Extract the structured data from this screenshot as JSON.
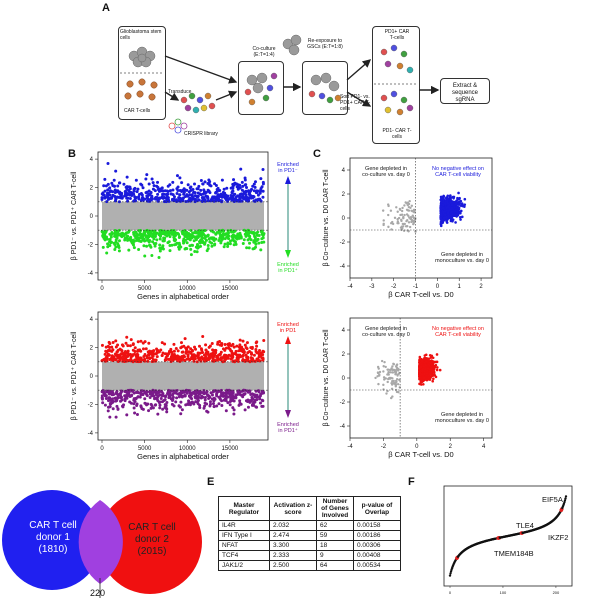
{
  "panels": {
    "A": "A",
    "B": "B",
    "C": "C",
    "D": "",
    "E": "E",
    "F": "F"
  },
  "schematic": {
    "gsc_label": "Glioblastoma stem cells",
    "cart_label": "CAR T-cells",
    "transduce": "Transduce",
    "library": "CRISPR library",
    "coculture": "Co-culture (E:T=1:4)",
    "reexposure": "Re-exposure to GSCs (E:T=1:8)",
    "sort": "Sort PD1- vs. PD1+ CAR T-cells",
    "pd1pos": "PD1+ CAR T-cells",
    "pd1neg": "PD1- CAR T-cells",
    "extract": "Extract & sequence sgRNA"
  },
  "panelB": {
    "top": {
      "ylabel": "β PD1⁻ vs. PD1⁺ CAR T-cell",
      "xlabel": "Genes in alphabetical order",
      "xticks": [
        "0",
        "5000",
        "10000",
        "15000"
      ],
      "yticks": [
        "4",
        "2",
        "0",
        "-2",
        "-4"
      ],
      "up_label": "Enriched in PD1⁻",
      "down_label": "Enriched in PD1⁺",
      "up_color": "#1a1adb",
      "mid_color": "#b0b0b0",
      "down_color": "#22dd22"
    },
    "bottom": {
      "ylabel": "β PD1⁻ vs. PD1⁺ CAR T-cell",
      "xlabel": "Genes in alphabetical order",
      "xticks": [
        "0",
        "5000",
        "10000",
        "15000"
      ],
      "yticks": [
        "4",
        "2",
        "0",
        "-2",
        "-4"
      ],
      "up_label": "Enriched in PD1",
      "down_label": "Enriched in PD1⁺",
      "up_color": "#ee1111",
      "mid_color": "#b0b0b0",
      "down_color": "#7a1a8a"
    }
  },
  "panelC": {
    "top": {
      "ylabel": "β Co−culture vs. D0 CAR T-cell",
      "xlabel": "β CAR T-cell vs. D0",
      "xticks": [
        "-4",
        "-3",
        "-2",
        "-1",
        "0",
        "1",
        "2"
      ],
      "yticks": [
        "4",
        "2",
        "0",
        "-2",
        "-4"
      ],
      "tl_label": "Gene depleted in co-culture vs. day 0",
      "tr_label": "No negative effect on CAR T-cell viability",
      "br_label": "Gene depleted in monoculture vs. day 0",
      "color": "#1a1adb"
    },
    "bottom": {
      "ylabel": "β Co−culture vs. D0 CAR T-cell",
      "xlabel": "β CAR T-cell vs. D0",
      "xticks": [
        "-4",
        "-2",
        "0",
        "2",
        "4"
      ],
      "yticks": [
        "4",
        "2",
        "0",
        "-2",
        "-4"
      ],
      "tl_label": "Gene depleted in co-culture vs. day 0",
      "tr_label": "No negative effect on CAR T-cell viability",
      "br_label": "Gene depleted in monoculture vs. day 0",
      "color": "#ee1111"
    }
  },
  "venn": {
    "left_line1": "CAR T cell",
    "left_line2": "donor 1",
    "left_line3": "(1810)",
    "right_line1": "CAR T cell",
    "right_line2": "donor 2",
    "right_line3": "(2015)",
    "overlap": "220",
    "left_color": "#2020f0",
    "right_color": "#f01010",
    "overlap_color": "#a040e0"
  },
  "tableE": {
    "headers": [
      "Master Regulator",
      "Activation z-score",
      "Number of Genes Involved",
      "p-value of Overlap"
    ],
    "rows": [
      [
        "IL4R",
        "2.032",
        "62",
        "0.00158"
      ],
      [
        "IFN Type I",
        "2.474",
        "59",
        "0.00186"
      ],
      [
        "NFAT",
        "3.300",
        "18",
        "0.00306"
      ],
      [
        "TCF4",
        "2.333",
        "9",
        "0.00408"
      ],
      [
        "JAK1/2",
        "2.500",
        "64",
        "0.00534"
      ]
    ]
  },
  "panelF": {
    "labels": [
      "EIF5A",
      "TLE4",
      "IKZF2",
      "TMEM184B"
    ]
  }
}
